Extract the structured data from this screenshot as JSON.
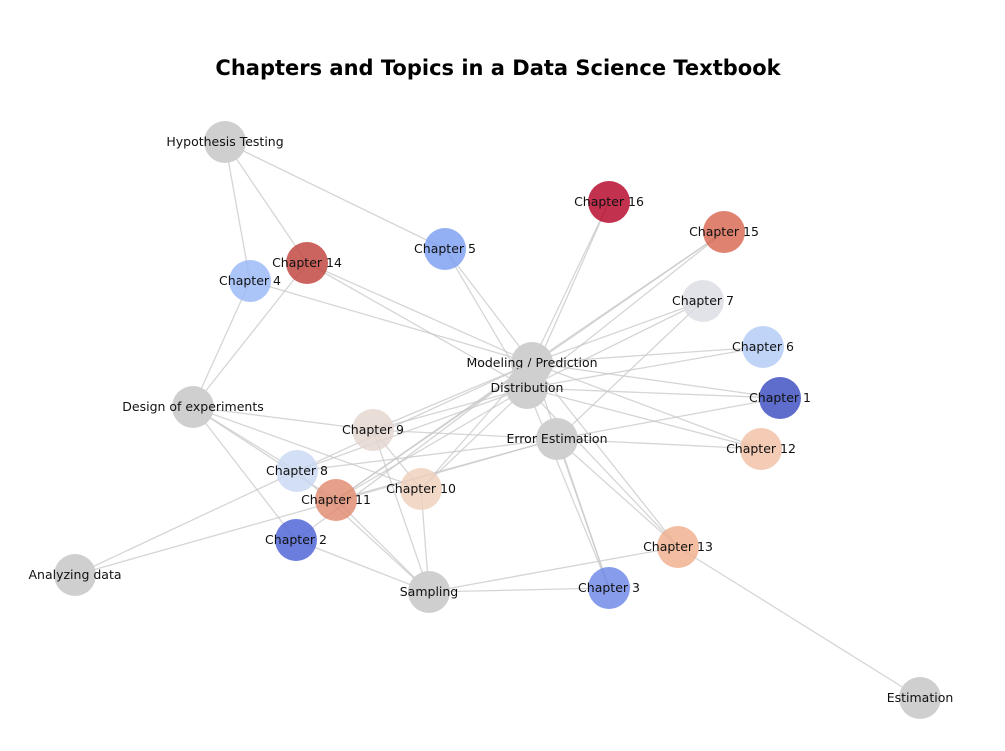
{
  "title": "Chapters and Topics in a Data Science Textbook",
  "colors": {
    "topic": "#cfcfcf",
    "edge": "#c8c8c8"
  },
  "nodes": [
    {
      "id": "hyp",
      "label": "Hypothesis Testing",
      "kind": "topic",
      "color": "#cfcfcf"
    },
    {
      "id": "ch16",
      "label": "Chapter 16",
      "kind": "chapter",
      "color": "#b40426"
    },
    {
      "id": "ch15",
      "label": "Chapter 15",
      "kind": "chapter",
      "color": "#d8664f"
    },
    {
      "id": "ch5",
      "label": "Chapter 5",
      "kind": "chapter",
      "color": "#7b9ff2"
    },
    {
      "id": "ch14",
      "label": "Chapter 14",
      "kind": "chapter",
      "color": "#c0423b"
    },
    {
      "id": "ch4",
      "label": "Chapter 4",
      "kind": "chapter",
      "color": "#9ab8f8"
    },
    {
      "id": "ch7",
      "label": "Chapter 7",
      "kind": "chapter",
      "color": "#dcdde3"
    },
    {
      "id": "ch6",
      "label": "Chapter 6",
      "kind": "chapter",
      "color": "#b2cbf6"
    },
    {
      "id": "model",
      "label": "Modeling / Prediction",
      "kind": "topic",
      "color": "#cfcfcf"
    },
    {
      "id": "dist",
      "label": "Distribution",
      "kind": "topic",
      "color": "#cfcfcf"
    },
    {
      "id": "ch1",
      "label": "Chapter 1",
      "kind": "chapter",
      "color": "#3b4cc0"
    },
    {
      "id": "doe",
      "label": "Design of experiments",
      "kind": "topic",
      "color": "#cfcfcf"
    },
    {
      "id": "ch9",
      "label": "Chapter 9",
      "kind": "chapter",
      "color": "#e4d6cf"
    },
    {
      "id": "err",
      "label": "Error Estimation",
      "kind": "topic",
      "color": "#cfcfcf"
    },
    {
      "id": "ch12",
      "label": "Chapter 12",
      "kind": "chapter",
      "color": "#f2bfa4"
    },
    {
      "id": "ch8",
      "label": "Chapter 8",
      "kind": "chapter",
      "color": "#c9d8f3"
    },
    {
      "id": "ch10",
      "label": "Chapter 10",
      "kind": "chapter",
      "color": "#efcfbb"
    },
    {
      "id": "ch11",
      "label": "Chapter 11",
      "kind": "chapter",
      "color": "#e08a6e"
    },
    {
      "id": "ch2",
      "label": "Chapter 2",
      "kind": "chapter",
      "color": "#4b62d6"
    },
    {
      "id": "ch13",
      "label": "Chapter 13",
      "kind": "chapter",
      "color": "#efae8c"
    },
    {
      "id": "analyze",
      "label": "Analyzing data",
      "kind": "topic",
      "color": "#cfcfcf"
    },
    {
      "id": "sampling",
      "label": "Sampling",
      "kind": "topic",
      "color": "#cfcfcf"
    },
    {
      "id": "ch3",
      "label": "Chapter 3",
      "kind": "chapter",
      "color": "#6c87e8"
    },
    {
      "id": "estimation",
      "label": "Estimation",
      "kind": "topic",
      "color": "#cfcfcf"
    }
  ],
  "edges": [
    [
      "hyp",
      "ch4"
    ],
    [
      "hyp",
      "ch14"
    ],
    [
      "hyp",
      "ch5"
    ],
    [
      "ch16",
      "model"
    ],
    [
      "ch16",
      "dist"
    ],
    [
      "ch15",
      "model"
    ],
    [
      "ch15",
      "dist"
    ],
    [
      "ch15",
      "ch11"
    ],
    [
      "ch5",
      "model"
    ],
    [
      "ch5",
      "dist"
    ],
    [
      "ch14",
      "model"
    ],
    [
      "ch14",
      "dist"
    ],
    [
      "ch14",
      "doe"
    ],
    [
      "ch4",
      "model"
    ],
    [
      "ch4",
      "doe"
    ],
    [
      "ch7",
      "model"
    ],
    [
      "ch7",
      "dist"
    ],
    [
      "ch7",
      "err"
    ],
    [
      "ch6",
      "model"
    ],
    [
      "ch6",
      "dist"
    ],
    [
      "ch1",
      "model"
    ],
    [
      "ch1",
      "dist"
    ],
    [
      "ch1",
      "err"
    ],
    [
      "ch12",
      "model"
    ],
    [
      "ch12",
      "err"
    ],
    [
      "ch12",
      "dist"
    ],
    [
      "model",
      "ch9"
    ],
    [
      "model",
      "ch8"
    ],
    [
      "model",
      "ch10"
    ],
    [
      "model",
      "ch11"
    ],
    [
      "model",
      "ch2"
    ],
    [
      "model",
      "ch13"
    ],
    [
      "model",
      "ch3"
    ],
    [
      "dist",
      "ch9"
    ],
    [
      "dist",
      "ch8"
    ],
    [
      "dist",
      "ch10"
    ],
    [
      "dist",
      "ch11"
    ],
    [
      "dist",
      "ch13"
    ],
    [
      "dist",
      "ch3"
    ],
    [
      "err",
      "ch9"
    ],
    [
      "err",
      "ch8"
    ],
    [
      "err",
      "ch11"
    ],
    [
      "err",
      "analyze"
    ],
    [
      "doe",
      "ch9"
    ],
    [
      "doe",
      "ch8"
    ],
    [
      "doe",
      "ch10"
    ],
    [
      "doe",
      "ch11"
    ],
    [
      "doe",
      "ch2"
    ],
    [
      "ch9",
      "sampling"
    ],
    [
      "ch9",
      "ch10"
    ],
    [
      "ch8",
      "analyze"
    ],
    [
      "ch8",
      "sampling"
    ],
    [
      "ch10",
      "sampling"
    ],
    [
      "ch11",
      "sampling"
    ],
    [
      "ch2",
      "sampling"
    ],
    [
      "ch13",
      "sampling"
    ],
    [
      "ch13",
      "estimation"
    ],
    [
      "ch13",
      "err"
    ],
    [
      "ch3",
      "sampling"
    ],
    [
      "ch3",
      "err"
    ]
  ]
}
